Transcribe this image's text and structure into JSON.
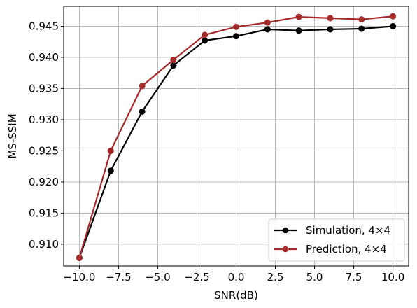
{
  "chart_data": {
    "type": "line",
    "xlabel": "SNR(dB)",
    "ylabel": "MS-SSIM",
    "x": [
      -10,
      -8,
      -6,
      -4,
      -2,
      0,
      2,
      4,
      6,
      8,
      10
    ],
    "xlim": [
      -11,
      11
    ],
    "ylim": [
      0.9065,
      0.9482
    ],
    "xticks": [
      -10,
      -7.5,
      -5,
      -2.5,
      0,
      2.5,
      5,
      7.5,
      10
    ],
    "xtick_labels": [
      "−10.0",
      "−7.5",
      "−5.0",
      "−2.5",
      "0.0",
      "2.5",
      "5.0",
      "7.5",
      "10.0"
    ],
    "yticks": [
      0.91,
      0.915,
      0.92,
      0.925,
      0.93,
      0.935,
      0.94,
      0.945
    ],
    "ytick_labels": [
      "0.910",
      "0.915",
      "0.920",
      "0.925",
      "0.930",
      "0.935",
      "0.940",
      "0.945"
    ],
    "grid": true,
    "legend_position": "lower-right",
    "series": [
      {
        "name": "Simulation, 4×4",
        "color": "#000000",
        "marker": "circle",
        "values": [
          0.9078,
          0.9218,
          0.9313,
          0.9387,
          0.9427,
          0.9434,
          0.9445,
          0.9443,
          0.9445,
          0.9446,
          0.945
        ]
      },
      {
        "name": "Prediction, 4×4",
        "color": "#a52a2a",
        "marker": "circle",
        "values": [
          0.9078,
          0.925,
          0.9354,
          0.9396,
          0.9436,
          0.9449,
          0.9456,
          0.9465,
          0.9463,
          0.9461,
          0.9466
        ]
      }
    ]
  }
}
